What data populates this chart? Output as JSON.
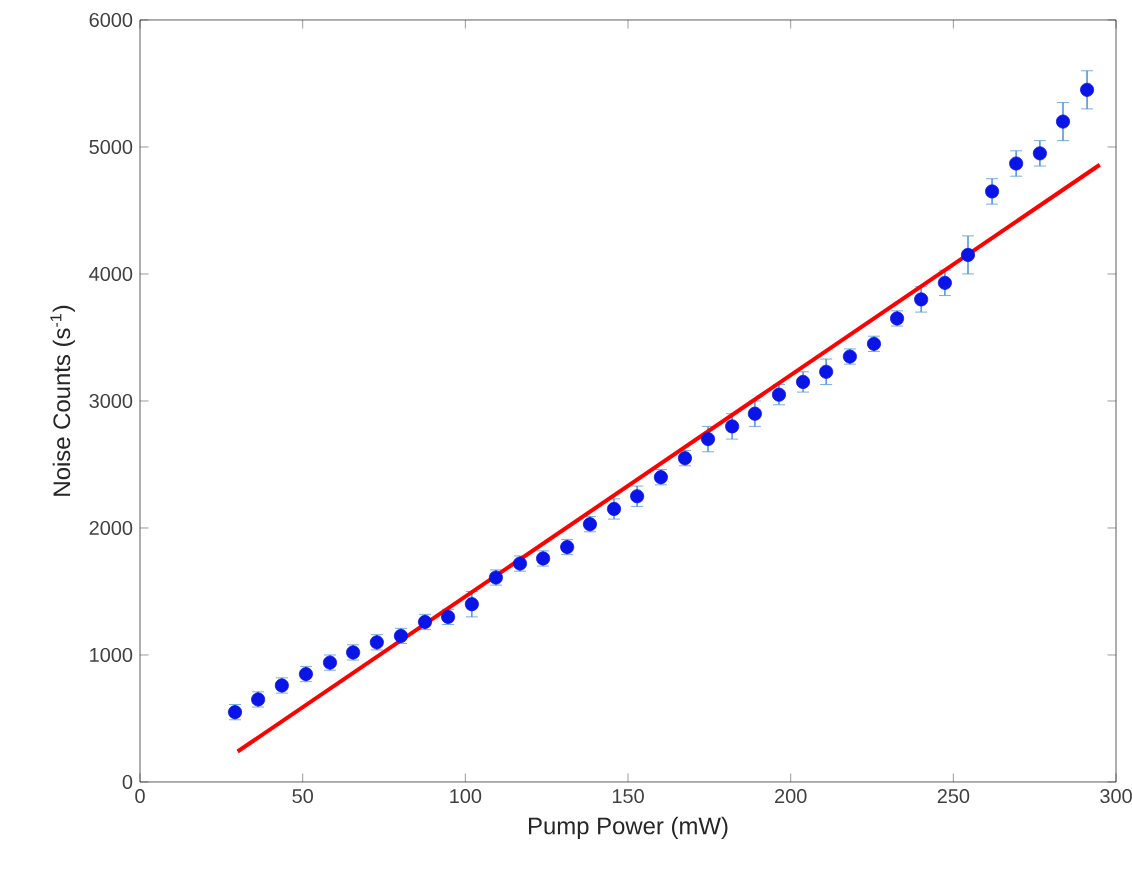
{
  "chart_data": {
    "type": "scatter",
    "xlabel": "Pump Power (mW)",
    "ylabel": "Noise Counts (s$^{-1}$)",
    "x": [
      29.2,
      36.3,
      43.6,
      51.0,
      58.4,
      65.5,
      72.8,
      80.2,
      87.6,
      94.7,
      102.0,
      109.4,
      116.8,
      123.9,
      131.3,
      138.3,
      145.7,
      152.8,
      160.1,
      167.5,
      174.6,
      182.0,
      189.0,
      196.4,
      203.8,
      210.9,
      218.2,
      225.6,
      232.7,
      240.1,
      247.4,
      254.5,
      261.9,
      269.3,
      276.6,
      283.7,
      291.1
    ],
    "series": [
      {
        "color": "#0a14e6",
        "marker": "circle",
        "values": [
          550,
          650,
          760,
          850,
          940,
          1020,
          1100,
          1150,
          1260,
          1300,
          1400,
          1610,
          1720,
          1760,
          1850,
          2030,
          2150,
          2250,
          2400,
          2550,
          2700,
          2800,
          2900,
          3050,
          3150,
          3230,
          3350,
          3450,
          3650,
          3800,
          3930,
          4150,
          4650,
          4870,
          4950,
          5200,
          5450
        ],
        "errors": [
          60,
          60,
          60,
          60,
          60,
          60,
          60,
          60,
          60,
          60,
          100,
          60,
          60,
          60,
          60,
          60,
          80,
          80,
          60,
          60,
          100,
          100,
          100,
          80,
          80,
          100,
          60,
          60,
          60,
          100,
          100,
          150,
          100,
          100,
          100,
          150,
          150
        ]
      },
      {
        "type": "line",
        "color": "#ff0000",
        "x": [
          30,
          295
        ],
        "values": [
          240,
          4860
        ]
      }
    ],
    "xlim": [
      0,
      300
    ],
    "xticks": [
      0,
      50,
      100,
      150,
      200,
      250,
      300
    ],
    "ylim": [
      0,
      6000
    ],
    "yticks": [
      0,
      1000,
      2000,
      3000,
      4000,
      5000,
      6000
    ],
    "grid": false
  }
}
